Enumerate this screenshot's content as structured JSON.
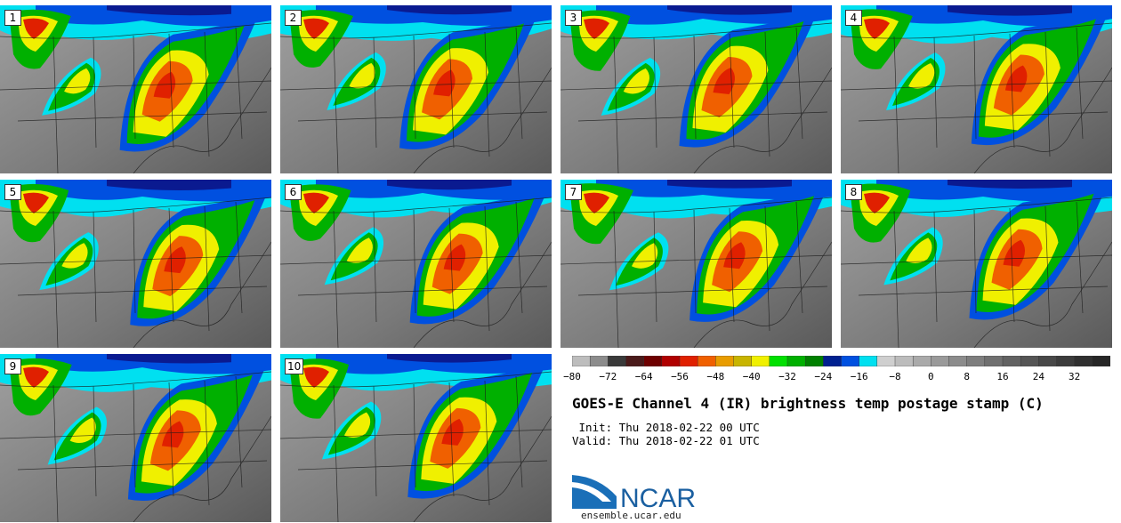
{
  "panels": [
    {
      "label": "1"
    },
    {
      "label": "2"
    },
    {
      "label": "3"
    },
    {
      "label": "4"
    },
    {
      "label": "5"
    },
    {
      "label": "6"
    },
    {
      "label": "7"
    },
    {
      "label": "8"
    },
    {
      "label": "9"
    },
    {
      "label": "10"
    }
  ],
  "colorbar": {
    "tick_labels": [
      "−80",
      "−72",
      "−64",
      "−56",
      "−48",
      "−40",
      "−32",
      "−24",
      "−16",
      "−8",
      "0",
      "8",
      "16",
      "24",
      "32"
    ],
    "tick_values": [
      -80,
      -72,
      -64,
      -56,
      -48,
      -40,
      -32,
      -24,
      -16,
      -8,
      0,
      8,
      16,
      24,
      32
    ],
    "min": -80,
    "max": 40,
    "step": 4,
    "colors": [
      "#bdbdbd",
      "#8c8c8c",
      "#3a3a3a",
      "#4a1a1a",
      "#6e0000",
      "#b00000",
      "#e02000",
      "#f06000",
      "#e89c00",
      "#c8b400",
      "#f0f000",
      "#00e000",
      "#00b000",
      "#008000",
      "#002090",
      "#0050e0",
      "#00e0f0",
      "#cfcfcf",
      "#bcbcbc",
      "#aaaaaa",
      "#9a9a9a",
      "#8c8c8c",
      "#7e7e7e",
      "#707070",
      "#626262",
      "#555555",
      "#484848",
      "#3c3c3c",
      "#303030",
      "#262626"
    ]
  },
  "title": "GOES-E Channel 4 (IR) brightness temp postage stamp (C)",
  "init_line": " Init: Thu 2018-02-22 00 UTC",
  "valid_line": "Valid: Thu 2018-02-22 01 UTC",
  "logo": {
    "text": "NCAR",
    "url": "ensemble.ucar.edu"
  },
  "colors": {
    "map_bg": "#8a8a8a",
    "cold_blue": "#0050e0",
    "cyan": "#00e0f0",
    "green": "#00b000",
    "yellow": "#f0f000",
    "orange": "#f06000",
    "red": "#e02000"
  }
}
